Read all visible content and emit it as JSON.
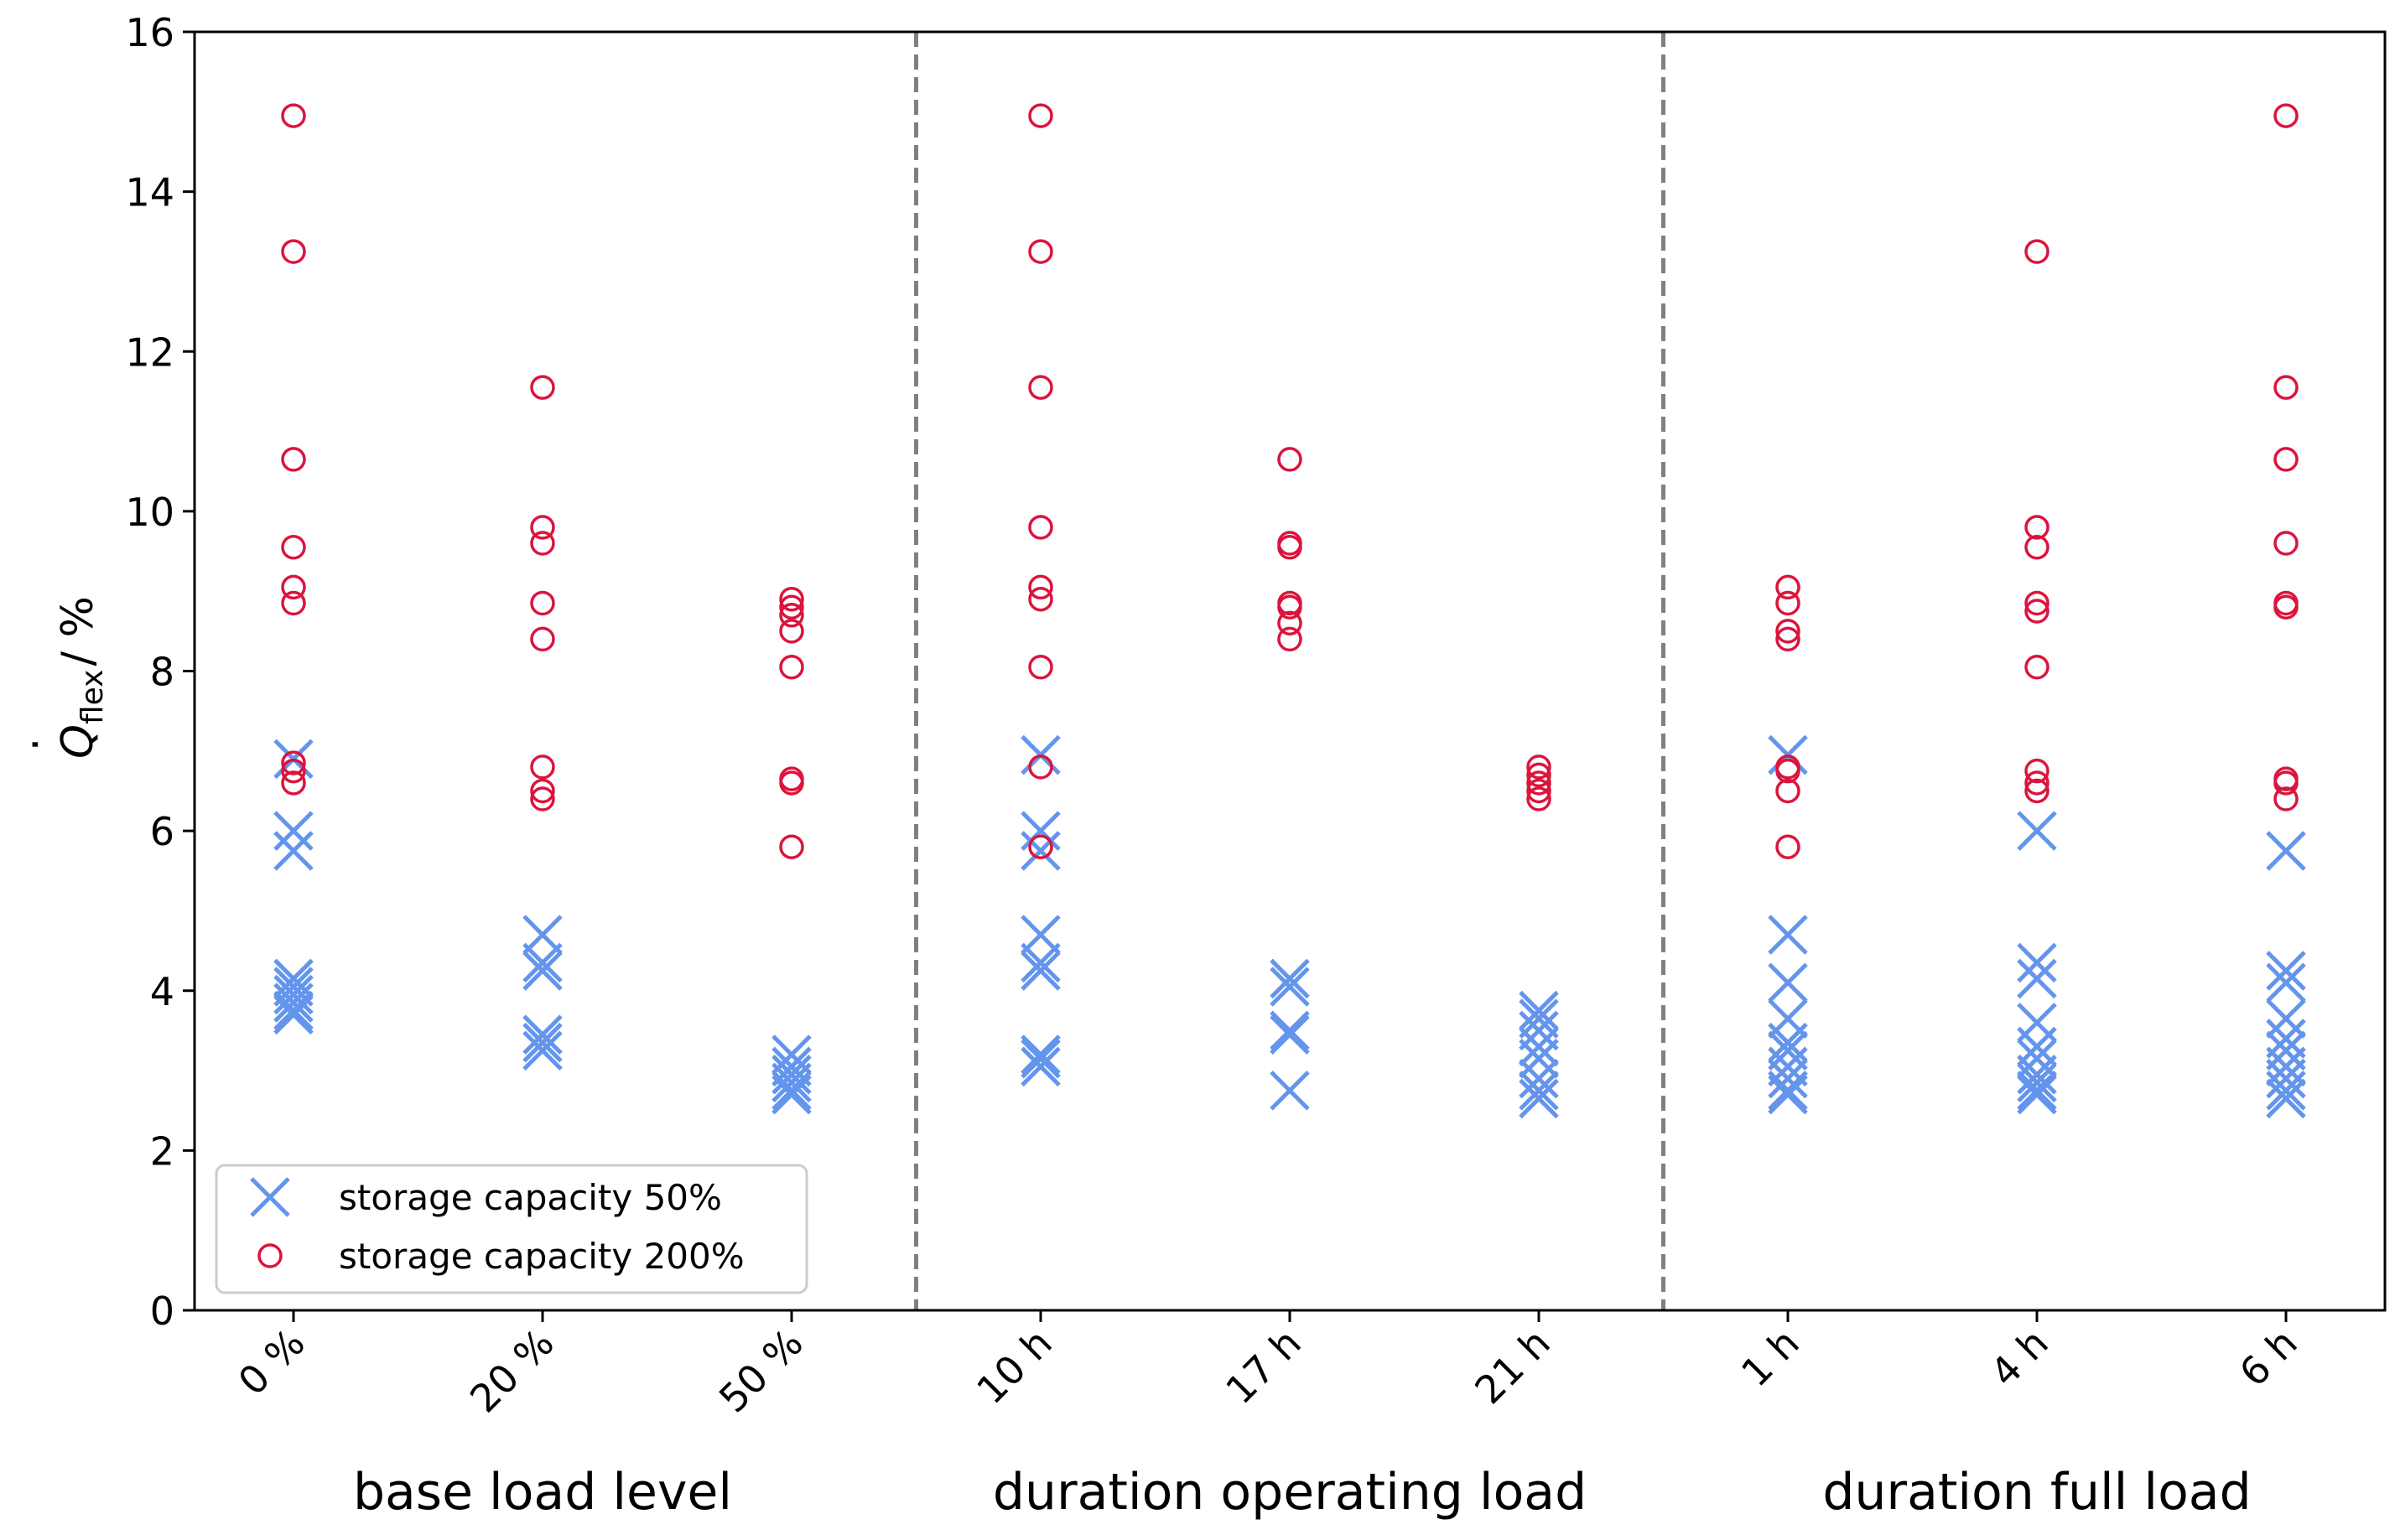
{
  "chart_data": {
    "type": "scatter",
    "title": "",
    "ylabel": {
      "base": "Q",
      "subscript": "flex",
      "suffix": "/ %"
    },
    "ylim": [
      0,
      16
    ],
    "yticks": [
      0,
      2,
      4,
      6,
      8,
      10,
      12,
      14,
      16
    ],
    "categories": [
      "0 %",
      "20 %",
      "50 %",
      "10 h",
      "17 h",
      "21 h",
      "1 h",
      "4 h",
      "6 h"
    ],
    "groups": [
      {
        "label": "base load level",
        "categories": [
          "0 %",
          "20 %",
          "50 %"
        ]
      },
      {
        "label": "duration operating load",
        "categories": [
          "10 h",
          "17 h",
          "21 h"
        ]
      },
      {
        "label": "duration full load",
        "categories": [
          "1 h",
          "4 h",
          "6 h"
        ]
      }
    ],
    "grid": false,
    "legend_position": "lower-left",
    "series": [
      {
        "name": "storage capacity 50%",
        "marker": "x",
        "color": "#6495ED",
        "values": [
          [
            6.9,
            6.0,
            5.75,
            4.15,
            4.05,
            3.95,
            3.85,
            3.75,
            3.7
          ],
          [
            4.7,
            4.35,
            4.25,
            3.45,
            3.35,
            3.25
          ],
          [
            3.2,
            3.05,
            2.95,
            2.85,
            2.75,
            2.7
          ],
          [
            6.95,
            6.0,
            5.75,
            4.7,
            4.35,
            4.25,
            3.2,
            3.15,
            3.05
          ],
          [
            4.15,
            4.05,
            3.5,
            3.45,
            2.75
          ],
          [
            3.75,
            3.65,
            3.5,
            3.3,
            3.15,
            2.9,
            2.75,
            2.65
          ],
          [
            6.95,
            4.7,
            4.1,
            3.65,
            3.35,
            3.25,
            3.05,
            2.9,
            2.75,
            2.7
          ],
          [
            6.0,
            4.35,
            4.15,
            3.6,
            3.3,
            3.15,
            2.95,
            2.85,
            2.75,
            2.7
          ],
          [
            5.75,
            4.25,
            4.1,
            3.65,
            3.4,
            3.25,
            3.05,
            2.9,
            2.75,
            2.65
          ]
        ]
      },
      {
        "name": "storage capacity 200%",
        "marker": "o",
        "color": "#DC143C",
        "values": [
          [
            14.95,
            13.25,
            10.65,
            9.55,
            9.05,
            8.85,
            6.85,
            6.75,
            6.6
          ],
          [
            11.55,
            9.8,
            9.6,
            8.85,
            8.4,
            6.8,
            6.5,
            6.4
          ],
          [
            8.9,
            8.8,
            8.7,
            8.5,
            8.05,
            6.65,
            6.6,
            5.8
          ],
          [
            14.95,
            13.25,
            11.55,
            9.8,
            9.05,
            8.9,
            8.05,
            6.8,
            5.8
          ],
          [
            10.65,
            9.6,
            9.55,
            8.85,
            8.8,
            8.6,
            8.4
          ],
          [
            6.8,
            6.7,
            6.6,
            6.5,
            6.4
          ],
          [
            9.05,
            8.85,
            8.5,
            8.4,
            6.8,
            6.75,
            6.5,
            5.8
          ],
          [
            13.25,
            9.8,
            9.55,
            8.85,
            8.75,
            8.05,
            6.75,
            6.6,
            6.5
          ],
          [
            14.95,
            11.55,
            10.65,
            9.6,
            8.85,
            8.8,
            6.65,
            6.6,
            6.4
          ]
        ]
      }
    ]
  }
}
